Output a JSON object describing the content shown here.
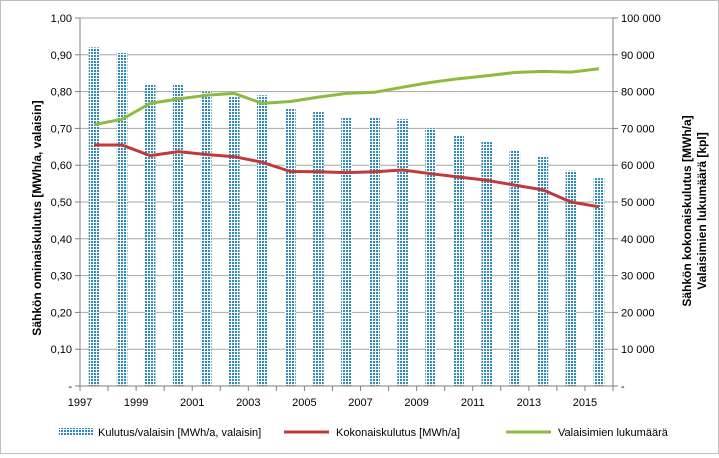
{
  "chart_data": {
    "type": "bar",
    "title": "",
    "x": [
      1997,
      1998,
      1999,
      2000,
      2001,
      2002,
      2003,
      2004,
      2005,
      2006,
      2007,
      2008,
      2009,
      2010,
      2011,
      2012,
      2013,
      2014,
      2015
    ],
    "x_tick_labels": [
      "1997",
      "1999",
      "2001",
      "2003",
      "2005",
      "2007",
      "2009",
      "2011",
      "2013",
      "2015"
    ],
    "ylabel_left": "Sähkön ominaiskulutus [MWh/a, valaisin]",
    "ylabel_right_line1": "Sähkön kokonaiskulutus [MWh/a]",
    "ylabel_right_line2": "Valaisimien lukumäärä [kpl]",
    "ylim_left": [
      0,
      1.0
    ],
    "ylim_right": [
      0,
      100000
    ],
    "y_left_tick_labels": [
      "-",
      "0,10",
      "0,20",
      "0,30",
      "0,40",
      "0,50",
      "0,60",
      "0,70",
      "0,80",
      "0,90",
      "1,00"
    ],
    "y_right_tick_labels": [
      "-",
      "10 000",
      "20 000",
      "30 000",
      "40 000",
      "50 000",
      "60 000",
      "70 000",
      "80 000",
      "90 000",
      "100 000"
    ],
    "grid": true,
    "legend_position": "bottom",
    "series": [
      {
        "name": "Kulutus/valaisin [MWh/a, valaisin]",
        "type": "bar",
        "axis": "left",
        "color": "#2e8ab8",
        "values": [
          0.92,
          0.905,
          0.82,
          0.82,
          0.8,
          0.785,
          0.79,
          0.755,
          0.745,
          0.73,
          0.73,
          0.725,
          0.7,
          0.68,
          0.665,
          0.64,
          0.625,
          0.585,
          0.565
        ]
      },
      {
        "name": "Kokonaiskulutus [MWh/a]",
        "type": "line",
        "axis": "right",
        "color": "#c0393b",
        "values": [
          65500,
          65500,
          62600,
          63700,
          62900,
          62300,
          60800,
          58300,
          58200,
          58000,
          58200,
          58700,
          57700,
          56800,
          55900,
          54600,
          53300,
          50000,
          48700
        ]
      },
      {
        "name": "Valaisimien lukumäärä",
        "type": "line",
        "axis": "right",
        "color": "#8dbb40",
        "values": [
          71000,
          72500,
          76800,
          78000,
          79000,
          79500,
          76800,
          77300,
          78500,
          79500,
          79800,
          81200,
          82500,
          83500,
          84300,
          85200,
          85500,
          85300,
          86200
        ]
      }
    ]
  }
}
